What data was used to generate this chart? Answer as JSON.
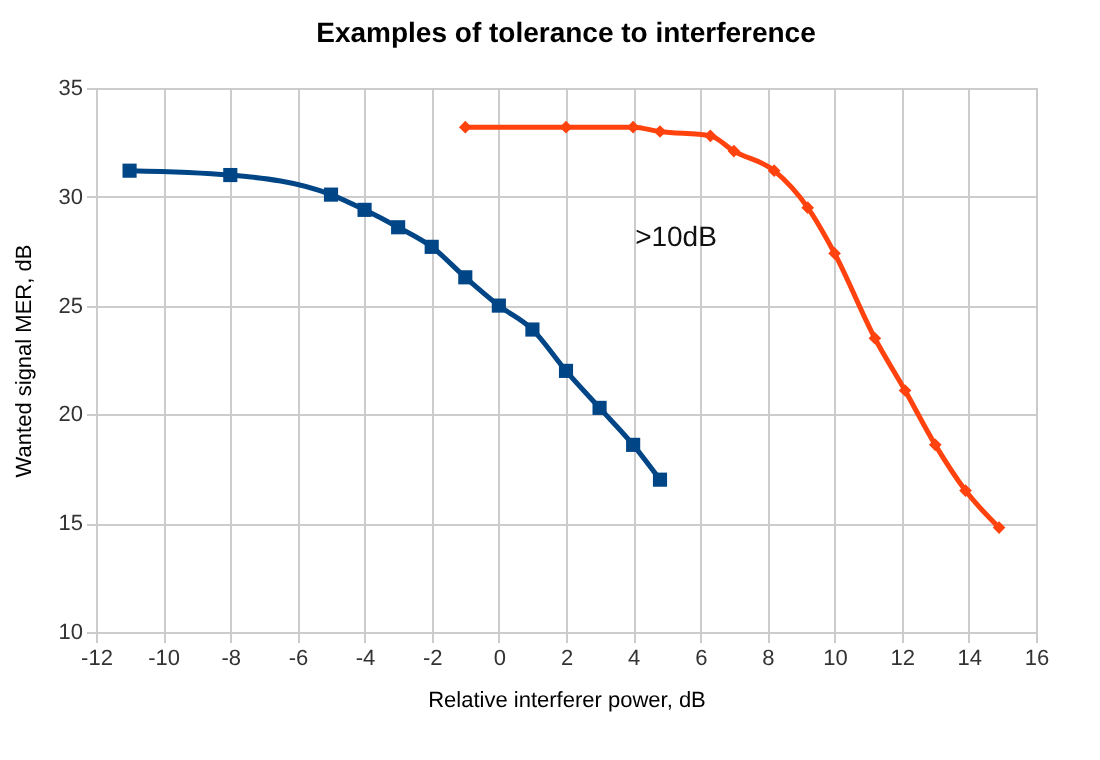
{
  "chart_data": {
    "type": "line",
    "title": "Examples of tolerance to interference",
    "xlabel": "Relative interferer power, dB",
    "ylabel": "Wanted signal MER, dB",
    "series": [
      {
        "color": "#004586",
        "marker": "square",
        "x": [
          -11,
          -8,
          -5,
          -4,
          -3,
          -2,
          -1,
          0,
          1,
          2,
          3,
          4,
          4.8
        ],
        "values": [
          31.2,
          31.0,
          30.1,
          29.4,
          28.6,
          27.7,
          26.3,
          25.0,
          23.9,
          22.0,
          20.3,
          18.6,
          17.0
        ]
      },
      {
        "color": "#ff420e",
        "marker": "diamond",
        "x": [
          -1,
          2,
          4,
          4.8,
          6.3,
          7,
          8.2,
          9.2,
          10,
          11.2,
          12.1,
          13,
          13.9,
          14.9
        ],
        "values": [
          33.2,
          33.2,
          33.2,
          33.0,
          32.8,
          32.1,
          31.2,
          29.5,
          27.4,
          23.5,
          21.1,
          18.6,
          16.5,
          14.8
        ]
      }
    ],
    "xlim": [
      -12,
      16
    ],
    "xticks": [
      -12,
      -10,
      -8,
      -6,
      -4,
      -2,
      0,
      2,
      4,
      6,
      8,
      10,
      12,
      14,
      16
    ],
    "ylim": [
      10,
      35
    ],
    "yticks": [
      10,
      15,
      20,
      25,
      30,
      35
    ],
    "grid": true,
    "annotations": [
      ">10dB"
    ]
  }
}
